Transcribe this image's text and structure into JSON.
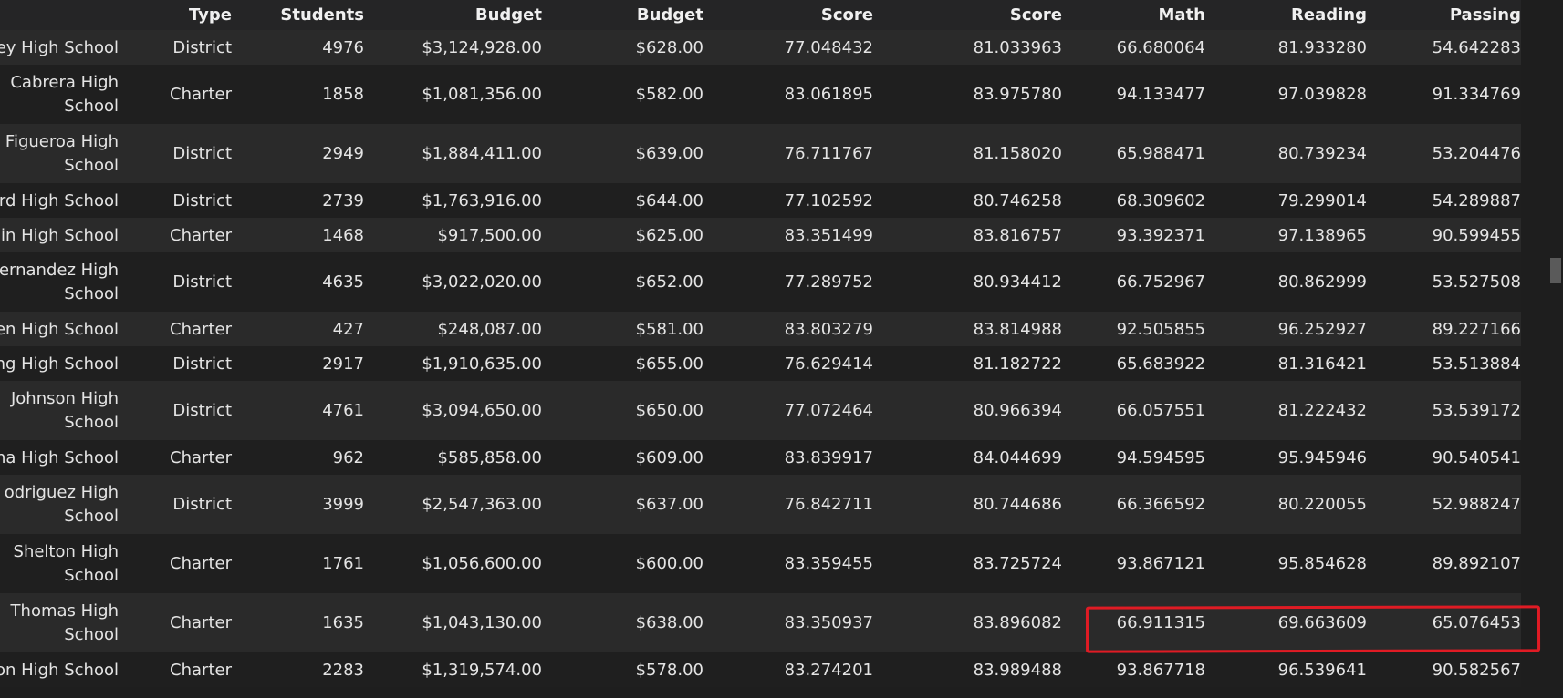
{
  "columns": {
    "type": "Type",
    "students": "Students",
    "budget": "Budget",
    "per_capita_budget": "Budget",
    "math_score": "Score",
    "reading_score": "Score",
    "pct_math": "Math",
    "pct_reading": "Reading",
    "pct_overall": "Passing"
  },
  "rows": [
    {
      "name": "ey High School",
      "type": "District",
      "students": "4976",
      "budget": "$3,124,928.00",
      "pcb": "$628.00",
      "math": "77.048432",
      "reading": "81.033963",
      "pm": "66.680064",
      "pr": "81.933280",
      "op": "54.642283"
    },
    {
      "name": "Cabrera High School",
      "type": "Charter",
      "students": "1858",
      "budget": "$1,081,356.00",
      "pcb": "$582.00",
      "math": "83.061895",
      "reading": "83.975780",
      "pm": "94.133477",
      "pr": "97.039828",
      "op": "91.334769"
    },
    {
      "name": "Figueroa High School",
      "type": "District",
      "students": "2949",
      "budget": "$1,884,411.00",
      "pcb": "$639.00",
      "math": "76.711767",
      "reading": "81.158020",
      "pm": "65.988471",
      "pr": "80.739234",
      "op": "53.204476"
    },
    {
      "name": "rd High School",
      "type": "District",
      "students": "2739",
      "budget": "$1,763,916.00",
      "pcb": "$644.00",
      "math": "77.102592",
      "reading": "80.746258",
      "pm": "68.309602",
      "pr": "79.299014",
      "op": "54.289887"
    },
    {
      "name": "in High School",
      "type": "Charter",
      "students": "1468",
      "budget": "$917,500.00",
      "pcb": "$625.00",
      "math": "83.351499",
      "reading": "83.816757",
      "pm": "93.392371",
      "pr": "97.138965",
      "op": "90.599455"
    },
    {
      "name": "ernandez High School",
      "type": "District",
      "students": "4635",
      "budget": "$3,022,020.00",
      "pcb": "$652.00",
      "math": "77.289752",
      "reading": "80.934412",
      "pm": "66.752967",
      "pr": "80.862999",
      "op": "53.527508"
    },
    {
      "name": "en High School",
      "type": "Charter",
      "students": "427",
      "budget": "$248,087.00",
      "pcb": "$581.00",
      "math": "83.803279",
      "reading": "83.814988",
      "pm": "92.505855",
      "pr": "96.252927",
      "op": "89.227166"
    },
    {
      "name": "ng High School",
      "type": "District",
      "students": "2917",
      "budget": "$1,910,635.00",
      "pcb": "$655.00",
      "math": "76.629414",
      "reading": "81.182722",
      "pm": "65.683922",
      "pr": "81.316421",
      "op": "53.513884"
    },
    {
      "name": "Johnson High School",
      "type": "District",
      "students": "4761",
      "budget": "$3,094,650.00",
      "pcb": "$650.00",
      "math": "77.072464",
      "reading": "80.966394",
      "pm": "66.057551",
      "pr": "81.222432",
      "op": "53.539172"
    },
    {
      "name": "na High School",
      "type": "Charter",
      "students": "962",
      "budget": "$585,858.00",
      "pcb": "$609.00",
      "math": "83.839917",
      "reading": "84.044699",
      "pm": "94.594595",
      "pr": "95.945946",
      "op": "90.540541"
    },
    {
      "name": "odriguez High School",
      "type": "District",
      "students": "3999",
      "budget": "$2,547,363.00",
      "pcb": "$637.00",
      "math": "76.842711",
      "reading": "80.744686",
      "pm": "66.366592",
      "pr": "80.220055",
      "op": "52.988247"
    },
    {
      "name": "Shelton High School",
      "type": "Charter",
      "students": "1761",
      "budget": "$1,056,600.00",
      "pcb": "$600.00",
      "math": "83.359455",
      "reading": "83.725724",
      "pm": "93.867121",
      "pr": "95.854628",
      "op": "89.892107"
    },
    {
      "name": "Thomas High School",
      "type": "Charter",
      "students": "1635",
      "budget": "$1,043,130.00",
      "pcb": "$638.00",
      "math": "83.350937",
      "reading": "83.896082",
      "pm": "66.911315",
      "pr": "69.663609",
      "op": "65.076453"
    },
    {
      "name": "on High School",
      "type": "Charter",
      "students": "2283",
      "budget": "$1,319,574.00",
      "pcb": "$578.00",
      "math": "83.274201",
      "reading": "83.989488",
      "pm": "93.867718",
      "pr": "96.539641",
      "op": "90.582567"
    }
  ],
  "highlight": {
    "color": "#e01b24"
  }
}
